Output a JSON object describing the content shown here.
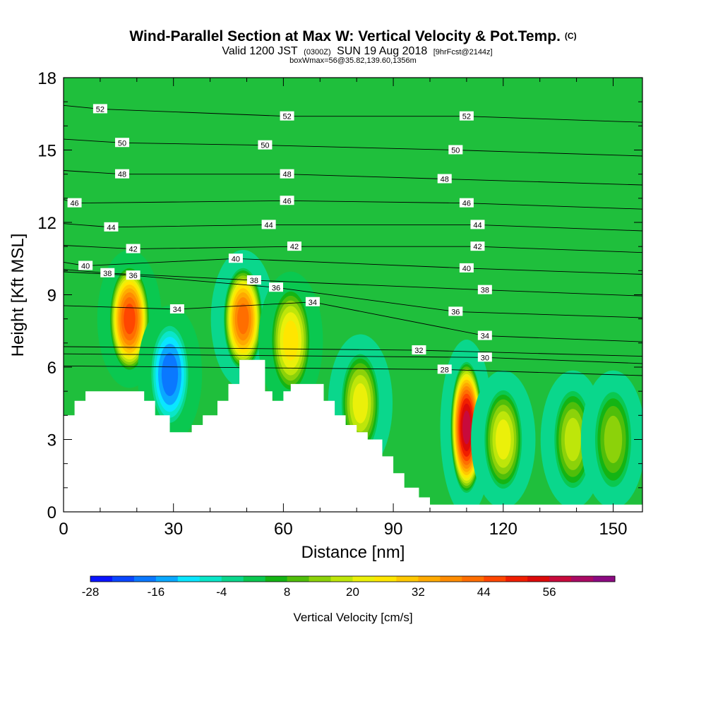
{
  "title": {
    "main": "Wind-Parallel Section at Max W: Vertical Velocity & Pot.Temp.",
    "main_suffix": "(C)",
    "valid_a": "Valid 1200 JST",
    "valid_b": "(0300Z)",
    "valid_c": "SUN 19 Aug 2018",
    "valid_d": "[9hrFcst@2144z]",
    "box": "boxWmax=56@35.82,139.60,1356m"
  },
  "colors": {
    "background_fill": "#1fbf3c",
    "terrain": "#ffffff",
    "contour": "#000000",
    "colorbar": [
      "#0a14ff",
      "#0a46ff",
      "#0a78ff",
      "#0aa8ff",
      "#0ae6ff",
      "#0ae6c8",
      "#0ad78c",
      "#0ac850",
      "#14b414",
      "#50be0a",
      "#8cd20a",
      "#bee60a",
      "#ebf00a",
      "#ffe600",
      "#ffc800",
      "#ffaa00",
      "#ff8c00",
      "#ff6e00",
      "#ff4600",
      "#f01e00",
      "#dc0a0a",
      "#c80a3c",
      "#aa0a64",
      "#8c0a82"
    ]
  },
  "chart_data": {
    "type": "heatmap",
    "xlabel": "Distance [nm]",
    "ylabel": "Height [Kft MSL]",
    "xlim": [
      0,
      158
    ],
    "ylim": [
      0,
      18
    ],
    "xticks": [
      0,
      30,
      60,
      90,
      120,
      150
    ],
    "yticks": [
      0,
      3,
      6,
      9,
      12,
      15,
      18
    ],
    "colorbar": {
      "label": "Vertical Velocity [cm/s]",
      "min": -28,
      "max": 68,
      "step": 4,
      "tick_values": [
        -28,
        -16,
        -4,
        8,
        20,
        32,
        44,
        56
      ]
    },
    "terrain_profile": [
      [
        0,
        4
      ],
      [
        3,
        4
      ],
      [
        3,
        4.6
      ],
      [
        6,
        4.6
      ],
      [
        6,
        5
      ],
      [
        22,
        5
      ],
      [
        22,
        4.6
      ],
      [
        25,
        4.6
      ],
      [
        25,
        4
      ],
      [
        29,
        4
      ],
      [
        29,
        3.3
      ],
      [
        35,
        3.3
      ],
      [
        35,
        3.6
      ],
      [
        38,
        3.6
      ],
      [
        38,
        4
      ],
      [
        42,
        4
      ],
      [
        42,
        4.6
      ],
      [
        45,
        4.6
      ],
      [
        45,
        5.3
      ],
      [
        48,
        5.3
      ],
      [
        48,
        6.3
      ],
      [
        55,
        6.3
      ],
      [
        55,
        5
      ],
      [
        57,
        5
      ],
      [
        57,
        4.6
      ],
      [
        60,
        4.6
      ],
      [
        60,
        5
      ],
      [
        62,
        5
      ],
      [
        62,
        5.3
      ],
      [
        71,
        5.3
      ],
      [
        71,
        4.6
      ],
      [
        74,
        4.6
      ],
      [
        74,
        4
      ],
      [
        77,
        4
      ],
      [
        77,
        3.6
      ],
      [
        80,
        3.6
      ],
      [
        80,
        3.3
      ],
      [
        83,
        3.3
      ],
      [
        83,
        3
      ],
      [
        87,
        3
      ],
      [
        87,
        2.3
      ],
      [
        90,
        2.3
      ],
      [
        90,
        1.6
      ],
      [
        93,
        1.6
      ],
      [
        93,
        1
      ],
      [
        97,
        1
      ],
      [
        97,
        0.6
      ],
      [
        100,
        0.6
      ],
      [
        100,
        0.3
      ],
      [
        158,
        0.3
      ]
    ],
    "w_cells": [
      {
        "x": 18,
        "z": 8,
        "w": 45
      },
      {
        "x": 29,
        "z": 5.7,
        "w": -18
      },
      {
        "x": 49,
        "z": 8,
        "w": 44
      },
      {
        "x": 62,
        "z": 7.1,
        "w": 25
      },
      {
        "x": 81,
        "z": 4.5,
        "w": 23
      },
      {
        "x": 110,
        "z": 3.5,
        "w": 60
      },
      {
        "x": 120,
        "z": 3,
        "w": 22
      },
      {
        "x": 139,
        "z": 3,
        "w": 20
      },
      {
        "x": 150,
        "z": 3,
        "w": 16
      }
    ],
    "isentropes_labeled": [
      {
        "theta": 52,
        "points": [
          [
            10,
            16.7
          ],
          [
            61,
            16.4
          ],
          [
            110,
            16.4
          ]
        ]
      },
      {
        "theta": 50,
        "points": [
          [
            16,
            15.3
          ],
          [
            55,
            15.2
          ],
          [
            107,
            15
          ]
        ]
      },
      {
        "theta": 48,
        "points": [
          [
            16,
            14
          ],
          [
            61,
            14
          ],
          [
            104,
            13.8
          ]
        ]
      },
      {
        "theta": 46,
        "points": [
          [
            3,
            12.8
          ],
          [
            61,
            12.9
          ],
          [
            110,
            12.8
          ]
        ]
      },
      {
        "theta": 44,
        "points": [
          [
            13,
            11.8
          ],
          [
            56,
            11.9
          ],
          [
            113,
            11.9
          ]
        ]
      },
      {
        "theta": 42,
        "points": [
          [
            19,
            10.9
          ],
          [
            63,
            11
          ],
          [
            113,
            11
          ]
        ]
      },
      {
        "theta": 40,
        "points": [
          [
            6,
            10.2
          ],
          [
            47,
            10.5
          ],
          [
            110,
            10.1
          ]
        ]
      },
      {
        "theta": 38,
        "points": [
          [
            12,
            9.9
          ],
          [
            52,
            9.6
          ],
          [
            115,
            9.2
          ]
        ]
      },
      {
        "theta": 36,
        "points": [
          [
            19,
            9.8
          ],
          [
            58,
            9.3
          ],
          [
            107,
            8.3
          ]
        ]
      },
      {
        "theta": 34,
        "points": [
          [
            31,
            8.4
          ],
          [
            68,
            8.7
          ],
          [
            115,
            7.3
          ]
        ]
      },
      {
        "theta": 32,
        "points": [
          [
            97,
            6.7
          ]
        ]
      },
      {
        "theta": 30,
        "points": [
          [
            115,
            6.4
          ]
        ]
      },
      {
        "theta": 28,
        "points": [
          [
            104,
            5.9
          ]
        ]
      }
    ]
  }
}
